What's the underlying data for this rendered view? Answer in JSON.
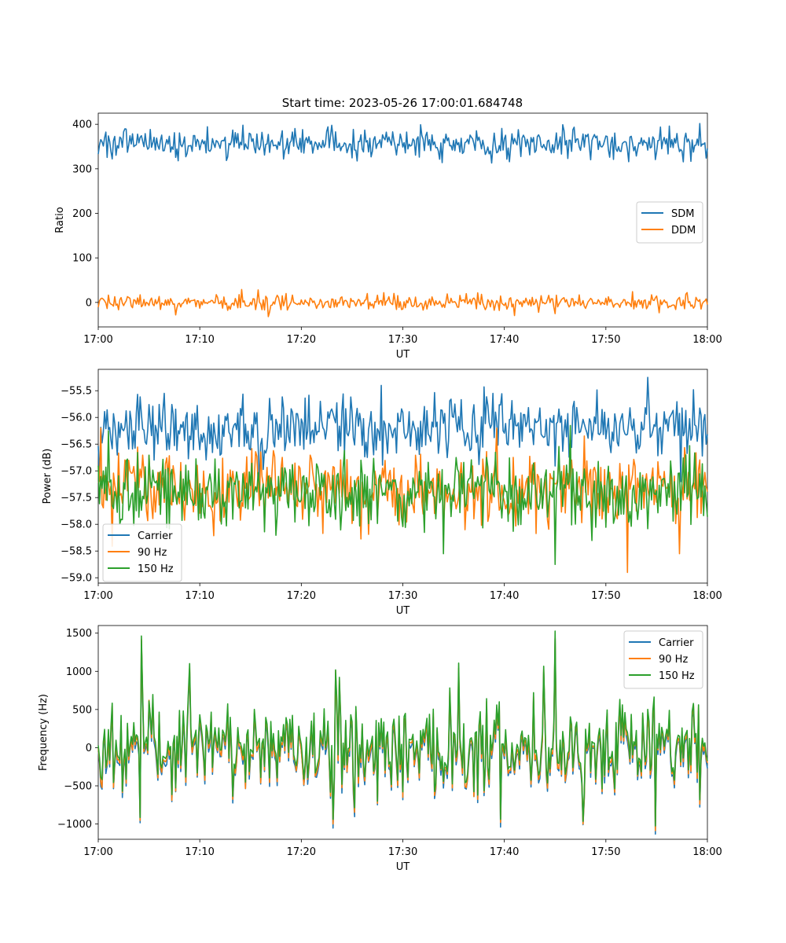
{
  "figure_title": "Start time: 2023-05-26 17:00:01.684748",
  "colors": {
    "blue": "#1f77b4",
    "orange": "#ff7f0e",
    "green": "#2ca02c"
  },
  "chart_data": [
    {
      "type": "line",
      "title": "Start time: 2023-05-26 17:00:01.684748",
      "xlabel": "UT",
      "ylabel": "Ratio",
      "x_range": [
        "17:00",
        "18:00"
      ],
      "ylim": [
        -55,
        425
      ],
      "xticks": [
        "17:00",
        "17:10",
        "17:20",
        "17:30",
        "17:40",
        "17:50",
        "18:00"
      ],
      "yticks": [
        0,
        100,
        200,
        300,
        400
      ],
      "grid": false,
      "legend": "center-right",
      "series": [
        {
          "name": "SDM",
          "color": "#1f77b4",
          "mean": 357,
          "noise_std": 16,
          "spikes": [
            [
              7.9,
              318
            ],
            [
              14.3,
              398
            ],
            [
              26.9,
              327
            ],
            [
              31.8,
              399
            ],
            [
              40.5,
              316
            ],
            [
              45.8,
              399
            ],
            [
              52.2,
              316
            ],
            [
              56.3,
              396
            ]
          ]
        },
        {
          "name": "DDM",
          "color": "#ff7f0e",
          "mean": 0,
          "noise_std": 9,
          "spikes": [
            [
              7.6,
              -28
            ],
            [
              14.1,
              29
            ],
            [
              15.8,
              28
            ],
            [
              16.8,
              -32
            ],
            [
              26.5,
              20
            ],
            [
              39.5,
              -18
            ]
          ]
        }
      ]
    },
    {
      "type": "line",
      "xlabel": "UT",
      "ylabel": "Power (dB)",
      "x_range": [
        "17:00",
        "18:00"
      ],
      "ylim": [
        -59.1,
        -55.1
      ],
      "xticks": [
        "17:00",
        "17:10",
        "17:20",
        "17:30",
        "17:40",
        "17:50",
        "18:00"
      ],
      "yticks": [
        -59.0,
        -58.5,
        -58.0,
        -57.5,
        -57.0,
        -56.5,
        -56.0,
        -55.5
      ],
      "ytick_labels": [
        "−59.0",
        "−58.5",
        "−58.0",
        "−57.5",
        "−57.0",
        "−56.5",
        "−56.0",
        "−55.5"
      ],
      "grid": false,
      "legend": "lower-left",
      "series": [
        {
          "name": "Carrier",
          "color": "#1f77b4",
          "mean": -56.2,
          "noise_std": 0.28,
          "spikes": [
            [
              6.5,
              -55.55
            ],
            [
              27.9,
              -55.4
            ],
            [
              38.9,
              -55.55
            ],
            [
              54.1,
              -55.25
            ],
            [
              57.4,
              -57.2
            ]
          ]
        },
        {
          "name": "90 Hz",
          "color": "#ff7f0e",
          "mean": -57.35,
          "noise_std": 0.35,
          "spikes": [
            [
              0.3,
              -56.2
            ],
            [
              39.2,
              -56.2
            ],
            [
              52.1,
              -58.9
            ],
            [
              57.2,
              -58.55
            ]
          ]
        },
        {
          "name": "150 Hz",
          "color": "#2ca02c",
          "mean": -57.4,
          "noise_std": 0.33,
          "spikes": [
            [
              1.0,
              -56.25
            ],
            [
              34.0,
              -58.55
            ],
            [
              45.0,
              -58.75
            ],
            [
              46.5,
              -56.15
            ]
          ]
        }
      ]
    },
    {
      "type": "line",
      "xlabel": "UT",
      "ylabel": "Frequency (Hz)",
      "x_range": [
        "17:00",
        "18:00"
      ],
      "ylim": [
        -1200,
        1600
      ],
      "xticks": [
        "17:00",
        "17:10",
        "17:20",
        "17:30",
        "17:40",
        "17:50",
        "18:00"
      ],
      "yticks": [
        -1000,
        -500,
        0,
        500,
        1000,
        1500
      ],
      "ytick_labels": [
        "−1000",
        "−500",
        "0",
        "500",
        "1000",
        "1500"
      ],
      "grid": false,
      "legend": "upper-right",
      "series": [
        {
          "name": "Carrier",
          "color": "#1f77b4",
          "offset": -60,
          "noise_std": 320
        },
        {
          "name": "90 Hz",
          "color": "#ff7f0e",
          "offset": -20,
          "noise_std": 320
        },
        {
          "name": "150 Hz",
          "color": "#2ca02c",
          "offset": 30,
          "noise_std": 320
        }
      ],
      "spikes": [
        [
          4.3,
          1450
        ],
        [
          4.1,
          -930
        ],
        [
          9.0,
          1060
        ],
        [
          23.1,
          -980
        ],
        [
          23.4,
          1030
        ],
        [
          35.5,
          1060
        ],
        [
          43.9,
          1040
        ],
        [
          45.0,
          1480
        ],
        [
          47.8,
          -960
        ],
        [
          54.9,
          -1060
        ]
      ]
    }
  ]
}
